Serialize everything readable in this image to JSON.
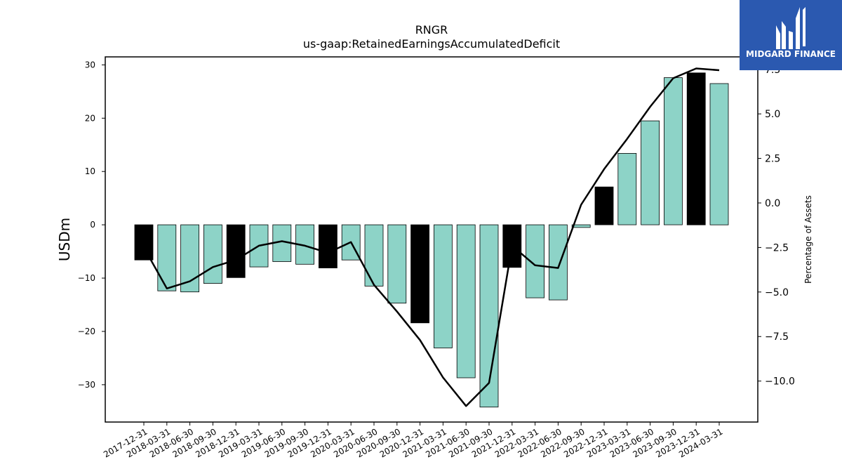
{
  "logo": {
    "text": "MIDGARD FINANCE",
    "background": "#2b59b0",
    "color": "#ffffff"
  },
  "chart_data": {
    "type": "bar",
    "title": "RNGR",
    "subtitle": "us-gaap:RetainedEarningsAccumulatedDeficit",
    "ylabel": "USDm",
    "y2label": "Percentage of Assets",
    "ylim": [
      -37,
      31.5
    ],
    "y2lim": [
      -12.3,
      8.2
    ],
    "yticks": [
      30,
      20,
      10,
      0,
      -10,
      -20,
      -30
    ],
    "y2ticks": [
      "7.5",
      "5.0",
      "2.5",
      "0.0",
      "−2.5",
      "−5.0",
      "−7.5",
      "−10.0"
    ],
    "y2tick_values": [
      7.5,
      5.0,
      2.5,
      0.0,
      -2.5,
      -5.0,
      -7.5,
      -10.0
    ],
    "categories": [
      "2017-12-31",
      "2018-03-31",
      "2018-06-30",
      "2018-09-30",
      "2018-12-31",
      "2019-03-31",
      "2019-06-30",
      "2019-09-30",
      "2019-12-31",
      "2020-03-31",
      "2020-06-30",
      "2020-09-30",
      "2020-12-31",
      "2021-03-31",
      "2021-06-30",
      "2021-09-30",
      "2021-12-31",
      "2022-03-31",
      "2022-06-30",
      "2022-09-30",
      "2022-12-31",
      "2023-03-31",
      "2023-06-30",
      "2023-09-30",
      "2023-12-31",
      "2024-03-31"
    ],
    "series": [
      {
        "type": "bar",
        "values": [
          -6.6,
          -12.4,
          -12.6,
          -11.0,
          -9.9,
          -7.9,
          -6.9,
          -7.4,
          -8.1,
          -6.6,
          -11.5,
          -14.7,
          -18.4,
          -23.1,
          -28.7,
          -34.2,
          -8.0,
          -13.7,
          -14.1,
          -0.5,
          7.1,
          13.4,
          19.5,
          27.6,
          28.5,
          26.5
        ],
        "year_end": [
          true,
          false,
          false,
          false,
          true,
          false,
          false,
          false,
          true,
          false,
          false,
          false,
          true,
          false,
          false,
          false,
          true,
          false,
          false,
          false,
          true,
          false,
          false,
          false,
          true,
          false
        ]
      },
      {
        "type": "line",
        "values": [
          -2.5,
          -4.8,
          -4.4,
          -3.6,
          -3.2,
          -2.4,
          -2.15,
          -2.4,
          -2.8,
          -2.2,
          -4.6,
          -6.1,
          -7.7,
          -9.8,
          -11.4,
          -10.1,
          -2.4,
          -3.5,
          -3.65,
          -0.1,
          1.9,
          3.6,
          5.4,
          7.0,
          7.55,
          7.45
        ]
      }
    ],
    "colors": {
      "bar": "#8dd3c7",
      "bar_year_end": "#000000",
      "line": "#000000"
    }
  }
}
